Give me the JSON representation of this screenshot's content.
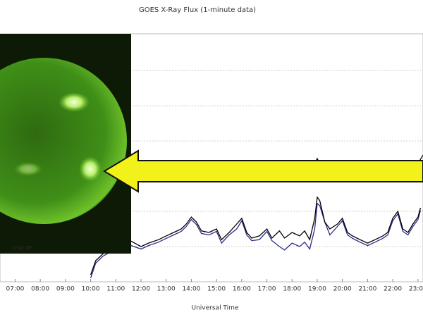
{
  "chart_data": {
    "type": "line",
    "title": "GOES X-Ray Flux (1-minute data)",
    "x_label": "Universal Time",
    "xlim": [
      6.4,
      23.2
    ],
    "xticks": [
      {
        "value": 7,
        "label": "07:00"
      },
      {
        "value": 8,
        "label": "08:00"
      },
      {
        "value": 9,
        "label": "09:00"
      },
      {
        "value": 10,
        "label": "10:00"
      },
      {
        "value": 11,
        "label": "11:00"
      },
      {
        "value": 12,
        "label": "12:00"
      },
      {
        "value": 13,
        "label": "13:00"
      },
      {
        "value": 14,
        "label": "14:00"
      },
      {
        "value": 15,
        "label": "15:00"
      },
      {
        "value": 16,
        "label": "16:00"
      },
      {
        "value": 17,
        "label": "17:00"
      },
      {
        "value": 18,
        "label": "18:00"
      },
      {
        "value": 19,
        "label": "19:00"
      },
      {
        "value": 20,
        "label": "20:00"
      },
      {
        "value": 21,
        "label": "21:00"
      },
      {
        "value": 22,
        "label": "22:00"
      },
      {
        "value": 23,
        "label": "23:00"
      }
    ],
    "ylim": [
      0,
      100
    ],
    "ygrid": [
      14.2,
      28.4,
      42.6,
      56.8,
      71.0,
      85.2
    ],
    "grid": true,
    "series": [
      {
        "color": "#111111",
        "x": [
          12.0,
          13.0,
          14.0,
          15.0,
          15.9,
          16.0,
          16.1,
          17.0,
          18.0,
          18.9,
          19.0,
          19.1,
          20.0,
          21.0,
          21.9,
          22.0,
          22.1,
          23.0,
          23.2
        ],
        "values": [
          47.7,
          47.7,
          47.7,
          47.7,
          47.7,
          48.9,
          47.7,
          47.7,
          47.7,
          47.7,
          49.7,
          47.7,
          47.7,
          47.7,
          47.7,
          48.9,
          47.7,
          47.7,
          51.1
        ]
      },
      {
        "color": "#2b2b8a",
        "x": [
          10.0,
          10.2,
          10.5,
          11.0,
          11.5,
          12.0,
          12.3,
          12.7,
          13.0,
          13.3,
          13.6,
          13.8,
          14.0,
          14.2,
          14.4,
          14.7,
          15.0,
          15.2,
          15.5,
          15.8,
          16.0,
          16.2,
          16.4,
          16.7,
          17.0,
          17.2,
          17.5,
          17.7,
          18.0,
          18.3,
          18.5,
          18.7,
          18.9,
          19.0,
          19.1,
          19.3,
          19.5,
          19.8,
          20.0,
          20.2,
          20.4,
          20.7,
          21.0,
          21.3,
          21.6,
          21.8,
          22.0,
          22.2,
          22.4,
          22.6,
          22.8,
          23.0,
          23.1
        ],
        "values": [
          1.5,
          7.5,
          10.4,
          13.2,
          15.0,
          13.2,
          14.6,
          16.0,
          17.5,
          18.9,
          20.3,
          22.3,
          25.1,
          23.1,
          19.5,
          18.9,
          20.3,
          15.6,
          18.9,
          21.3,
          24.6,
          18.9,
          16.6,
          17.0,
          20.3,
          16.6,
          14.2,
          12.8,
          15.6,
          14.2,
          16.0,
          13.2,
          21.3,
          31.6,
          30.7,
          24.1,
          18.9,
          22.3,
          24.6,
          18.9,
          17.5,
          16.0,
          14.6,
          16.0,
          17.5,
          18.9,
          24.6,
          27.4,
          20.3,
          18.9,
          22.3,
          25.1,
          28.8
        ]
      },
      {
        "color": "#000000",
        "x": [
          10.0,
          10.2,
          10.5,
          11.0,
          11.5,
          12.0,
          12.3,
          12.7,
          13.0,
          13.3,
          13.6,
          13.8,
          14.0,
          14.2,
          14.4,
          14.7,
          15.0,
          15.2,
          15.5,
          15.8,
          16.0,
          16.2,
          16.4,
          16.7,
          17.0,
          17.2,
          17.5,
          17.7,
          18.0,
          18.3,
          18.5,
          18.7,
          18.9,
          19.0,
          19.1,
          19.3,
          19.5,
          19.8,
          20.0,
          20.2,
          20.4,
          20.7,
          21.0,
          21.3,
          21.6,
          21.8,
          22.0,
          22.2,
          22.4,
          22.6,
          22.8,
          23.0,
          23.1
        ],
        "values": [
          2.8,
          8.5,
          11.4,
          14.2,
          17.0,
          14.2,
          15.6,
          17.0,
          18.5,
          19.9,
          21.3,
          23.3,
          26.1,
          24.1,
          20.5,
          19.9,
          21.3,
          17.0,
          19.9,
          23.3,
          25.6,
          19.9,
          17.6,
          18.5,
          21.3,
          17.6,
          20.5,
          17.6,
          19.9,
          18.5,
          20.5,
          17.0,
          25.6,
          34.1,
          32.7,
          24.1,
          21.3,
          23.3,
          25.6,
          19.9,
          18.5,
          17.0,
          15.6,
          17.0,
          18.5,
          19.9,
          25.6,
          28.4,
          21.3,
          19.9,
          23.3,
          26.1,
          29.8
        ]
      }
    ]
  },
  "sun_image": {
    "timestamp": "0-02 UT"
  }
}
